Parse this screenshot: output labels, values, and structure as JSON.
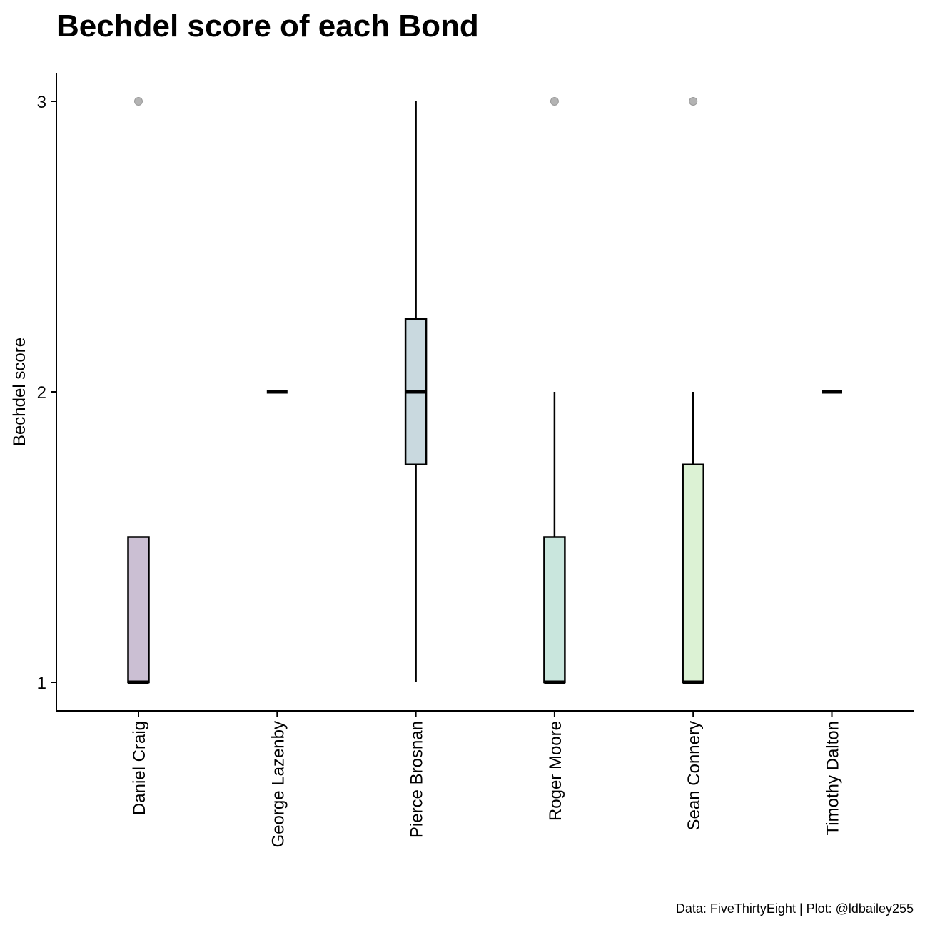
{
  "chart_data": {
    "type": "box",
    "title": "Bechdel score of each Bond",
    "xlabel": "",
    "ylabel": "Bechdel score",
    "caption": "Data: FiveThirtyEight | Plot: @ldbailey255",
    "ylim": [
      0.9,
      3.1
    ],
    "y_ticks": [
      "1",
      "2",
      "3"
    ],
    "grid": false,
    "legend": "none",
    "categories": [
      "Daniel Craig",
      "George Lazenby",
      "Pierce Brosnan",
      "Roger Moore",
      "Sean Connery",
      "Timothy Dalton"
    ],
    "boxes": [
      {
        "category": "Daniel Craig",
        "min": 1,
        "q1": 1,
        "median": 1,
        "q3": 1.5,
        "max": 1.5,
        "outliers": [
          3
        ],
        "fill": "#cbbfd3"
      },
      {
        "category": "George Lazenby",
        "min": 2,
        "q1": 2,
        "median": 2,
        "q3": 2,
        "max": 2,
        "outliers": [],
        "fill": "#cfd7dc"
      },
      {
        "category": "Pierce Brosnan",
        "min": 1,
        "q1": 1.75,
        "median": 2,
        "q3": 2.25,
        "max": 3,
        "outliers": [],
        "fill": "#c9d9df"
      },
      {
        "category": "Roger Moore",
        "min": 1,
        "q1": 1,
        "median": 1,
        "q3": 1.5,
        "max": 2,
        "outliers": [
          3
        ],
        "fill": "#c9e6dd"
      },
      {
        "category": "Sean Connery",
        "min": 1,
        "q1": 1,
        "median": 1,
        "q3": 1.75,
        "max": 2,
        "outliers": [
          3
        ],
        "fill": "#dcf2d4"
      },
      {
        "category": "Timothy Dalton",
        "min": 2,
        "q1": 2,
        "median": 2,
        "q3": 2,
        "max": 2,
        "outliers": [],
        "fill": "#e6f5d0"
      }
    ],
    "colors": {
      "outlier": "#b3b3b3",
      "axis": "#000000",
      "median": "#000000"
    }
  }
}
